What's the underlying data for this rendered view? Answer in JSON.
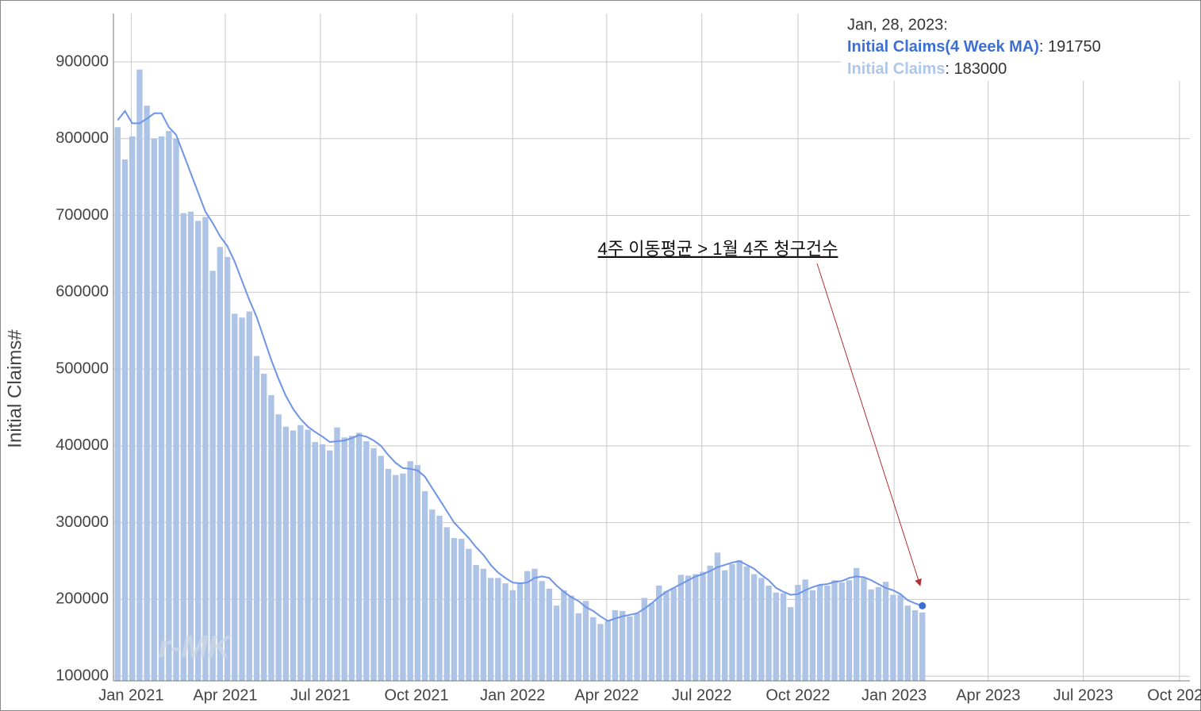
{
  "chart_data": {
    "type": "combo",
    "y_label": "Initial Claims#",
    "watermark": "r-MK",
    "annotation": "4주 이동평균 > 1월 4주 청구건수",
    "tooltip": {
      "date": "Jan, 28, 2023:",
      "separator": ": "
    },
    "grid": true,
    "ylim": [
      94000,
      963000
    ],
    "yticks": [
      100000,
      200000,
      300000,
      400000,
      500000,
      600000,
      700000,
      800000,
      900000
    ],
    "xlim": [
      "2020-12-15",
      "2023-10-11"
    ],
    "xticks": [
      {
        "value": "2021-01-01",
        "label": "Jan 2021"
      },
      {
        "value": "2021-04-01",
        "label": "Apr 2021"
      },
      {
        "value": "2021-07-01",
        "label": "Jul 2021"
      },
      {
        "value": "2021-10-01",
        "label": "Oct 2021"
      },
      {
        "value": "2022-01-01",
        "label": "Jan 2022"
      },
      {
        "value": "2022-04-01",
        "label": "Apr 2022"
      },
      {
        "value": "2022-07-01",
        "label": "Jul 2022"
      },
      {
        "value": "2022-10-01",
        "label": "Oct 2022"
      },
      {
        "value": "2023-01-01",
        "label": "Jan 2023"
      },
      {
        "value": "2023-04-01",
        "label": "Apr 2023"
      },
      {
        "value": "2023-07-01",
        "label": "Jul 2023"
      },
      {
        "value": "2023-10-01",
        "label": "Oct 2023"
      }
    ],
    "x": [
      "2020-12-19",
      "2020-12-26",
      "2021-01-02",
      "2021-01-09",
      "2021-01-16",
      "2021-01-23",
      "2021-01-30",
      "2021-02-06",
      "2021-02-13",
      "2021-02-20",
      "2021-02-27",
      "2021-03-06",
      "2021-03-13",
      "2021-03-20",
      "2021-03-27",
      "2021-04-03",
      "2021-04-10",
      "2021-04-17",
      "2021-04-24",
      "2021-05-01",
      "2021-05-08",
      "2021-05-15",
      "2021-05-22",
      "2021-05-29",
      "2021-06-05",
      "2021-06-12",
      "2021-06-19",
      "2021-06-26",
      "2021-07-03",
      "2021-07-10",
      "2021-07-17",
      "2021-07-24",
      "2021-07-31",
      "2021-08-07",
      "2021-08-14",
      "2021-08-21",
      "2021-08-28",
      "2021-09-04",
      "2021-09-11",
      "2021-09-18",
      "2021-09-25",
      "2021-10-02",
      "2021-10-09",
      "2021-10-16",
      "2021-10-23",
      "2021-10-30",
      "2021-11-06",
      "2021-11-13",
      "2021-11-20",
      "2021-11-27",
      "2021-12-04",
      "2021-12-11",
      "2021-12-18",
      "2021-12-25",
      "2022-01-01",
      "2022-01-08",
      "2022-01-15",
      "2022-01-22",
      "2022-01-29",
      "2022-02-05",
      "2022-02-12",
      "2022-02-19",
      "2022-02-26",
      "2022-03-05",
      "2022-03-12",
      "2022-03-19",
      "2022-03-26",
      "2022-04-02",
      "2022-04-09",
      "2022-04-16",
      "2022-04-23",
      "2022-04-30",
      "2022-05-07",
      "2022-05-14",
      "2022-05-21",
      "2022-05-28",
      "2022-06-04",
      "2022-06-11",
      "2022-06-18",
      "2022-06-25",
      "2022-07-02",
      "2022-07-09",
      "2022-07-16",
      "2022-07-23",
      "2022-07-30",
      "2022-08-06",
      "2022-08-13",
      "2022-08-20",
      "2022-08-27",
      "2022-09-03",
      "2022-09-10",
      "2022-09-17",
      "2022-09-24",
      "2022-10-01",
      "2022-10-08",
      "2022-10-15",
      "2022-10-22",
      "2022-10-29",
      "2022-11-05",
      "2022-11-12",
      "2022-11-19",
      "2022-11-26",
      "2022-12-03",
      "2022-12-10",
      "2022-12-17",
      "2022-12-24",
      "2022-12-31",
      "2023-01-07",
      "2023-01-14",
      "2023-01-21",
      "2023-01-28"
    ],
    "series": [
      {
        "name": "Initial Claims(4 Week MA)",
        "type": "line",
        "color": "#6f94e6",
        "name_color": "#3b6fd6",
        "values": [
          824000,
          836000,
          820000,
          820000,
          826000,
          833000,
          833000,
          815000,
          805000,
          780000,
          755000,
          730000,
          705000,
          690000,
          673000,
          660000,
          640000,
          615000,
          590000,
          568000,
          540000,
          512000,
          487000,
          465000,
          448000,
          435000,
          425000,
          418000,
          412000,
          405000,
          406000,
          407000,
          410000,
          414000,
          412000,
          407000,
          400000,
          388000,
          378000,
          371000,
          370000,
          368000,
          360000,
          345000,
          330000,
          315000,
          300000,
          290000,
          280000,
          268000,
          258000,
          245000,
          235000,
          228000,
          222000,
          221000,
          222000,
          228000,
          230000,
          228000,
          218000,
          210000,
          203000,
          198000,
          190000,
          185000,
          178000,
          172000,
          175000,
          178000,
          180000,
          182000,
          188000,
          195000,
          203000,
          210000,
          215000,
          220000,
          225000,
          230000,
          233000,
          237000,
          242000,
          245000,
          248000,
          250000,
          245000,
          240000,
          232000,
          225000,
          215000,
          210000,
          206000,
          207000,
          212000,
          216000,
          219000,
          220000,
          223000,
          224000,
          228000,
          230000,
          229000,
          225000,
          220000,
          215000,
          212000,
          207000,
          199000,
          195000,
          191750
        ]
      },
      {
        "name": "Initial Claims",
        "type": "bar",
        "color": "#aec4e6",
        "name_color": "#aec6e8",
        "values": [
          815000,
          773000,
          803000,
          890000,
          843000,
          800000,
          803000,
          810000,
          800000,
          703000,
          705000,
          693000,
          698000,
          628000,
          659000,
          646000,
          572000,
          567000,
          575000,
          517000,
          494000,
          466000,
          441000,
          425000,
          420000,
          427000,
          421000,
          405000,
          402000,
          394000,
          424000,
          411000,
          413000,
          417000,
          406000,
          397000,
          387000,
          370000,
          362000,
          364000,
          380000,
          375000,
          341000,
          317000,
          309000,
          294000,
          280000,
          279000,
          266000,
          245000,
          240000,
          228000,
          228000,
          221000,
          212000,
          222000,
          237000,
          240000,
          224000,
          214000,
          192000,
          212000,
          205000,
          182000,
          198000,
          177000,
          168000,
          172000,
          186000,
          185000,
          178000,
          182000,
          202000,
          195000,
          218000,
          211000,
          215000,
          232000,
          231000,
          233000,
          236000,
          244000,
          261000,
          238000,
          246000,
          251000,
          243000,
          233000,
          228000,
          218000,
          209000,
          208000,
          190000,
          219000,
          226000,
          212000,
          219000,
          218000,
          225000,
          222000,
          225000,
          241000,
          228000,
          213000,
          216000,
          223000,
          206000,
          206000,
          192000,
          186000,
          183000
        ]
      }
    ]
  }
}
